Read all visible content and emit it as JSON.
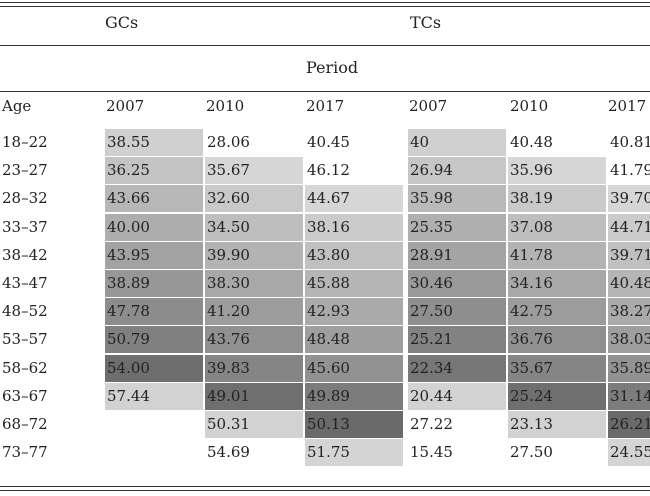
{
  "groups": [
    "GCs",
    "TCs"
  ],
  "period_label": "Period",
  "age_header": "Age",
  "years": [
    "2007",
    "2010",
    "2017",
    "2007",
    "2010",
    "2017"
  ],
  "rows": [
    {
      "age": "18–22",
      "values": [
        "38.55",
        "28.06",
        "40.45",
        "40",
        "40.48",
        "40.81"
      ],
      "shade": [
        "#cfcfcf",
        "#ffffff",
        "#ffffff",
        "#cfcfcf",
        "#ffffff",
        "#ffffff"
      ]
    },
    {
      "age": "23–27",
      "values": [
        "36.25",
        "35.67",
        "46.12",
        "26.94",
        "35.96",
        "41.79"
      ],
      "shade": [
        "#c3c3c3",
        "#d6d6d6",
        "#ffffff",
        "#c6c6c6",
        "#d6d6d6",
        "#ffffff"
      ]
    },
    {
      "age": "28–32",
      "values": [
        "43.66",
        "32.60",
        "44.67",
        "35.98",
        "38.19",
        "39.70"
      ],
      "shade": [
        "#b7b7b7",
        "#c9c9c9",
        "#d6d6d6",
        "#b9b9b9",
        "#c9c9c9",
        "#d6d6d6"
      ]
    },
    {
      "age": "33–37",
      "values": [
        "40.00",
        "34.50",
        "38.16",
        "25.35",
        "37.08",
        "44.71"
      ],
      "shade": [
        "#adadad",
        "#bebebe",
        "#cbcbcb",
        "#afafaf",
        "#bebebe",
        "#cbcbcb"
      ]
    },
    {
      "age": "38–42",
      "values": [
        "43.95",
        "39.90",
        "43.80",
        "28.91",
        "41.78",
        "39.71"
      ],
      "shade": [
        "#a2a2a2",
        "#b3b3b3",
        "#c0c0c0",
        "#a4a4a4",
        "#b3b3b3",
        "#c0c0c0"
      ]
    },
    {
      "age": "43–47",
      "values": [
        "38.89",
        "38.30",
        "45.88",
        "30.46",
        "34.16",
        "40.48"
      ],
      "shade": [
        "#979797",
        "#a8a8a8",
        "#b5b5b5",
        "#999999",
        "#a8a8a8",
        "#b5b5b5"
      ]
    },
    {
      "age": "48–52",
      "values": [
        "47.78",
        "41.20",
        "42.93",
        "27.50",
        "42.75",
        "38.27"
      ],
      "shade": [
        "#8c8c8c",
        "#9c9c9c",
        "#aaaaaa",
        "#8e8e8e",
        "#9c9c9c",
        "#aaaaaa"
      ]
    },
    {
      "age": "53–57",
      "values": [
        "50.79",
        "43.76",
        "48.48",
        "25.21",
        "36.76",
        "38.03"
      ],
      "shade": [
        "#808080",
        "#909090",
        "#9e9e9e",
        "#828282",
        "#909090",
        "#9e9e9e"
      ]
    },
    {
      "age": "58–62",
      "values": [
        "54.00",
        "39.83",
        "45.60",
        "22.34",
        "35.67",
        "35.89"
      ],
      "shade": [
        "#6e6e6e",
        "#858585",
        "#929292",
        "#777777",
        "#858585",
        "#929292"
      ]
    },
    {
      "age": "63–67",
      "values": [
        "57.44",
        "49.01",
        "49.89",
        "20.44",
        "25.24",
        "31.14"
      ],
      "shade": [
        "#d2d2d2",
        "#6f6f6f",
        "#7c7c7c",
        "#d2d2d2",
        "#6f6f6f",
        "#7c7c7c"
      ]
    },
    {
      "age": "68–72",
      "values": [
        "",
        "50.31",
        "50.13",
        "27.22",
        "23.13",
        "26.21"
      ],
      "shade": [
        "#ffffff",
        "#d2d2d2",
        "#6a6a6a",
        "#ffffff",
        "#d2d2d2",
        "#6a6a6a"
      ]
    },
    {
      "age": "73–77",
      "values": [
        "",
        "54.69",
        "51.75",
        "15.45",
        "27.50",
        "24.55"
      ],
      "shade": [
        "#ffffff",
        "#ffffff",
        "#d4d4d4",
        "#ffffff",
        "#ffffff",
        "#d4d4d4"
      ]
    }
  ]
}
